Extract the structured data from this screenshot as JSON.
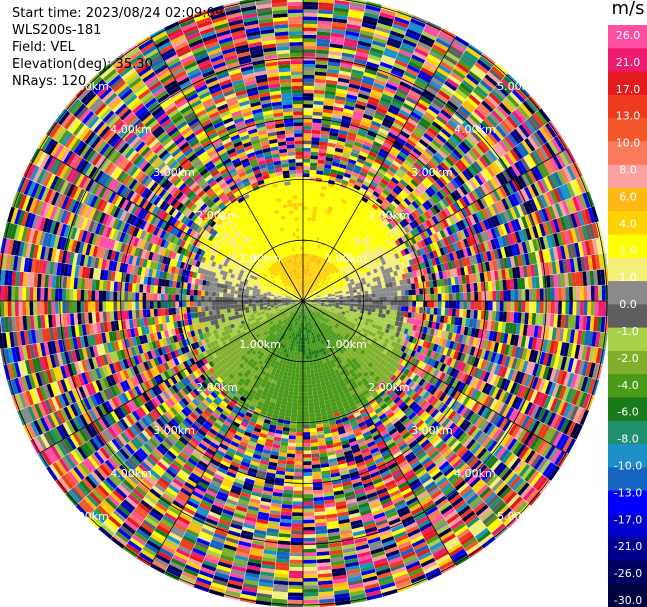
{
  "header": {
    "start_time": "Start time: 2023/08/24 02:09:09",
    "instrument": "WLS200s-181",
    "field": "Field: VEL",
    "elevation": "Elevation(deg): 35.30",
    "nrays": "NRays: 120"
  },
  "chart_data": {
    "type": "heatmap",
    "projection": "polar-ppi",
    "field": "VEL",
    "units": "m/s",
    "nrays": 120,
    "ring_labels": [
      "1.00km",
      "2.00km",
      "3.00km",
      "4.00km",
      "5.00km"
    ],
    "range_km": [
      0,
      5
    ],
    "grid": true,
    "colorbar": {
      "units": "m/s",
      "placement": "right",
      "ticks": [
        "26.0",
        "21.0",
        "17.0",
        "13.0",
        "10.0",
        "8.0",
        "6.0",
        "4.0",
        "2.0",
        "1.0",
        "0.0",
        "-1.0",
        "-2.0",
        "-4.0",
        "-6.0",
        "-8.0",
        "-10.0",
        "-13.0",
        "-17.0",
        "-21.0",
        "-26.0",
        "-30.0"
      ],
      "colors": [
        "#ff4fa3",
        "#ee1c70",
        "#e41a1c",
        "#ee3a1e",
        "#f5572c",
        "#fa7a5c",
        "#fba0a0",
        "#fdb813",
        "#fed200",
        "#ffff00",
        "#f5ef7a",
        "#8a8a8a",
        "#5e5e5e",
        "#a8d048",
        "#7fb02b",
        "#4a9a18",
        "#1a7a1a",
        "#1f8f6e",
        "#1e90c8",
        "#1565c0",
        "#0000ff",
        "#0000cd",
        "#000090",
        "#000060",
        "#000040"
      ]
    },
    "velocity_pattern": {
      "north_inner": "6.0",
      "north_mid": "2.0",
      "east_west": "0.0",
      "south_inner": "-6.0",
      "south_mid": "-4.0",
      "outer_region": "noise"
    }
  }
}
